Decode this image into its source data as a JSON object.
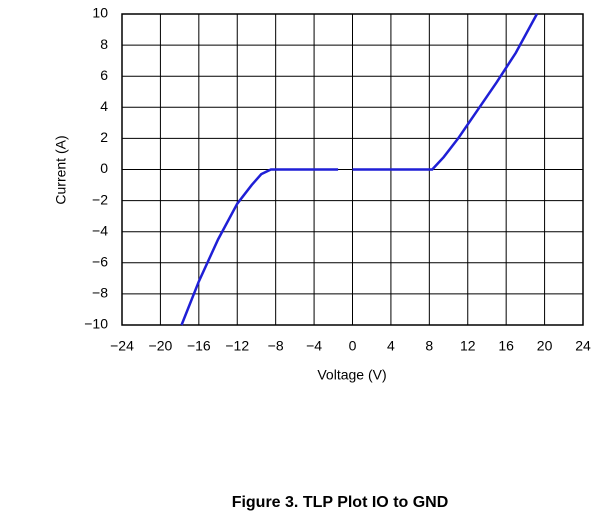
{
  "chart_data": {
    "type": "line",
    "caption": "Figure 3. TLP Plot IO to GND",
    "xlabel": "Voltage (V)",
    "ylabel": "Current (A)",
    "x": [
      -17.8,
      -16,
      -14,
      -12,
      -10.5,
      -9.5,
      -8.5,
      -1.5,
      -0.7,
      0,
      8.3,
      9.5,
      11,
      13,
      15,
      17,
      19.2
    ],
    "series": [
      {
        "color": "#1f1fd6",
        "values": [
          -10,
          -7.2,
          -4.5,
          -2.2,
          -1,
          -0.3,
          0,
          0,
          null,
          0,
          0,
          0.8,
          2,
          3.8,
          5.6,
          7.5,
          10
        ]
      }
    ],
    "xlim": [
      -24,
      24
    ],
    "xticks": [
      {
        "value": -24,
        "label": "−24"
      },
      {
        "value": -20,
        "label": "−20"
      },
      {
        "value": -16,
        "label": "−16"
      },
      {
        "value": -12,
        "label": "−12"
      },
      {
        "value": -8,
        "label": "−8"
      },
      {
        "value": -4,
        "label": "−4"
      },
      0,
      4,
      8,
      12,
      16,
      20,
      24
    ],
    "ylim": [
      -10,
      10
    ],
    "yticks": [
      {
        "value": -10,
        "label": "−10"
      },
      {
        "value": -8,
        "label": "−8"
      },
      {
        "value": -6,
        "label": "−6"
      },
      {
        "value": -4,
        "label": "−4"
      },
      {
        "value": -2,
        "label": "−2"
      },
      0,
      2,
      4,
      6,
      8,
      10
    ],
    "grid": true
  }
}
